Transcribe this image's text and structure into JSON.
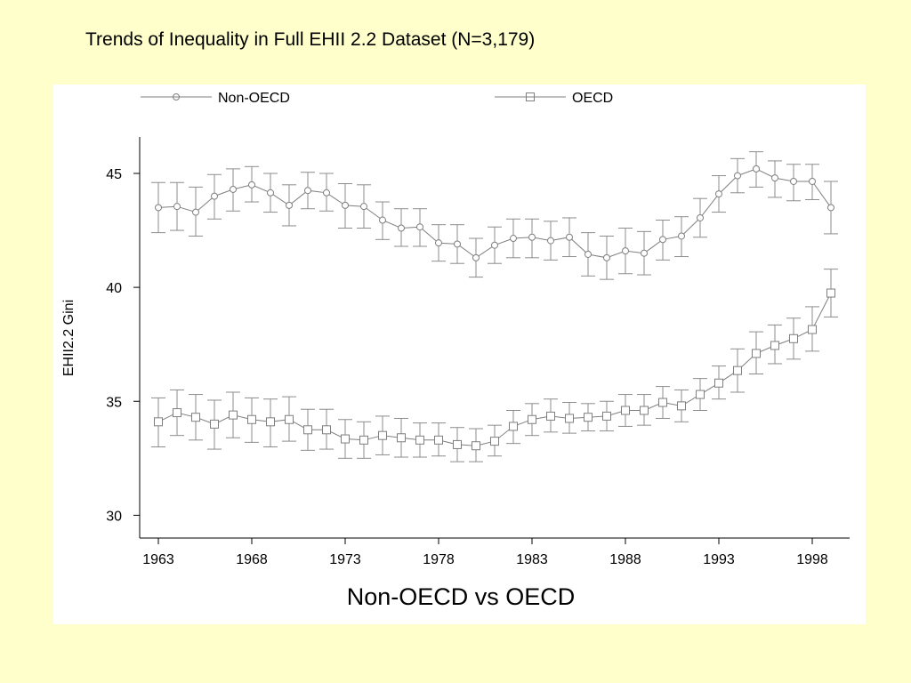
{
  "slide": {
    "title": "Trends of Inequality in Full EHII 2.2 Dataset (N=3,179)"
  },
  "colors": {
    "background": "#ffffcc",
    "panel": "#ffffff",
    "series_line": "#7f7f7f",
    "error_bar": "#8c8c8c"
  },
  "chart_data": {
    "type": "line",
    "title": "",
    "subtitle": "Non-OECD vs OECD",
    "xlabel": "",
    "ylabel": "EHII2.2 Gini",
    "xlim": [
      1962,
      2000
    ],
    "ylim": [
      29,
      46.6
    ],
    "x_ticks": [
      1963,
      1968,
      1973,
      1978,
      1983,
      1988,
      1993,
      1998
    ],
    "y_ticks": [
      30,
      35,
      40,
      45
    ],
    "legend_position": "top",
    "grid": false,
    "x": [
      1963,
      1964,
      1965,
      1966,
      1967,
      1968,
      1969,
      1970,
      1971,
      1972,
      1973,
      1974,
      1975,
      1976,
      1977,
      1978,
      1979,
      1980,
      1981,
      1982,
      1983,
      1984,
      1985,
      1986,
      1987,
      1988,
      1989,
      1990,
      1991,
      1992,
      1993,
      1994,
      1995,
      1996,
      1997,
      1998,
      1999
    ],
    "series": [
      {
        "name": "Non-OECD",
        "marker": "circle",
        "values": [
          43.5,
          43.55,
          43.3,
          44.0,
          44.3,
          44.5,
          44.15,
          43.6,
          44.25,
          44.15,
          43.6,
          43.55,
          42.95,
          42.6,
          42.65,
          41.95,
          41.9,
          41.3,
          41.85,
          42.15,
          42.2,
          42.05,
          42.2,
          41.45,
          41.3,
          41.6,
          41.5,
          42.1,
          42.25,
          43.05,
          44.1,
          44.9,
          45.2,
          44.8,
          44.65,
          44.65,
          43.5
        ],
        "lower": [
          42.4,
          42.5,
          42.25,
          43.0,
          43.35,
          43.75,
          43.3,
          42.7,
          43.45,
          43.35,
          42.6,
          42.6,
          42.1,
          41.8,
          41.8,
          41.15,
          41.05,
          40.45,
          41.05,
          41.3,
          41.3,
          41.2,
          41.35,
          40.5,
          40.35,
          40.6,
          40.55,
          41.2,
          41.35,
          42.2,
          43.3,
          44.15,
          44.4,
          43.95,
          43.8,
          43.85,
          42.35
        ],
        "upper": [
          44.6,
          44.6,
          44.4,
          44.95,
          45.2,
          45.3,
          45.0,
          44.5,
          45.05,
          45.0,
          44.55,
          44.5,
          43.75,
          43.45,
          43.45,
          42.75,
          42.75,
          42.15,
          42.65,
          43.0,
          43.0,
          42.9,
          43.05,
          42.4,
          42.25,
          42.6,
          42.45,
          42.95,
          43.1,
          43.9,
          44.9,
          45.65,
          45.95,
          45.55,
          45.4,
          45.4,
          44.65
        ]
      },
      {
        "name": "OECD",
        "marker": "square",
        "values": [
          34.1,
          34.5,
          34.3,
          34.0,
          34.4,
          34.2,
          34.1,
          34.2,
          33.75,
          33.75,
          33.35,
          33.3,
          33.5,
          33.4,
          33.3,
          33.3,
          33.1,
          33.05,
          33.25,
          33.9,
          34.2,
          34.35,
          34.25,
          34.3,
          34.35,
          34.6,
          34.6,
          34.95,
          34.8,
          35.3,
          35.8,
          36.35,
          37.1,
          37.45,
          37.75,
          38.15,
          39.75
        ],
        "lower": [
          33.0,
          33.5,
          33.3,
          32.9,
          33.4,
          33.2,
          33.0,
          33.25,
          32.85,
          32.9,
          32.5,
          32.5,
          32.65,
          32.55,
          32.55,
          32.6,
          32.35,
          32.35,
          32.6,
          33.15,
          33.5,
          33.65,
          33.6,
          33.7,
          33.7,
          33.9,
          33.95,
          34.25,
          34.1,
          34.6,
          35.1,
          35.4,
          36.2,
          36.65,
          36.85,
          37.2,
          38.7
        ],
        "upper": [
          35.15,
          35.5,
          35.3,
          35.05,
          35.4,
          35.15,
          35.1,
          35.2,
          34.65,
          34.65,
          34.2,
          34.1,
          34.35,
          34.25,
          34.05,
          34.05,
          33.85,
          33.8,
          33.95,
          34.6,
          34.9,
          35.1,
          34.95,
          34.9,
          35.0,
          35.3,
          35.3,
          35.65,
          35.5,
          36.0,
          36.55,
          37.3,
          38.05,
          38.35,
          38.65,
          39.15,
          40.8
        ]
      }
    ]
  }
}
